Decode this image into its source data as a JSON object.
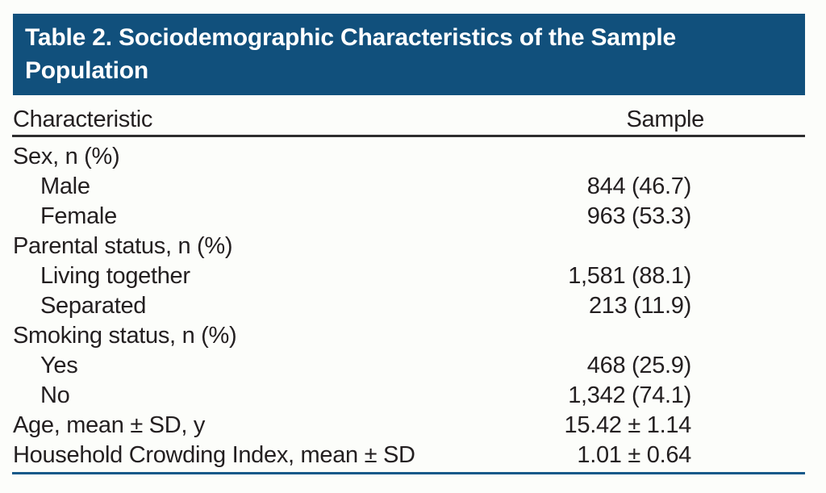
{
  "table": {
    "title": "Table 2. Sociodemographic Characteristics of the Sample Population",
    "header": {
      "characteristic": "Characteristic",
      "sample": "Sample"
    },
    "rows": [
      {
        "label": "Sex, n (%)",
        "value": "",
        "indent": false
      },
      {
        "label": "Male",
        "value": "844 (46.7)",
        "indent": true
      },
      {
        "label": "Female",
        "value": "963 (53.3)",
        "indent": true
      },
      {
        "label": "Parental status, n (%)",
        "value": "",
        "indent": false
      },
      {
        "label": "Living together",
        "value": "1,581 (88.1)",
        "indent": true
      },
      {
        "label": "Separated",
        "value": "213 (11.9)",
        "indent": true
      },
      {
        "label": "Smoking status, n (%)",
        "value": "",
        "indent": false
      },
      {
        "label": "Yes",
        "value": "468 (25.9)",
        "indent": true
      },
      {
        "label": "No",
        "value": "1,342 (74.1)",
        "indent": true
      },
      {
        "label": "Age, mean ± SD, y",
        "value": "15.42 ± 1.14",
        "indent": false
      },
      {
        "label": "Household Crowding Index, mean ± SD",
        "value": "1.01 ± 0.64",
        "indent": false
      }
    ],
    "colors": {
      "banner_background": "#11507C",
      "title_text": "#ffffff",
      "body_text": "#231f20",
      "header_rule": "#2e2e2e",
      "bottom_rule": "#16598A"
    }
  }
}
